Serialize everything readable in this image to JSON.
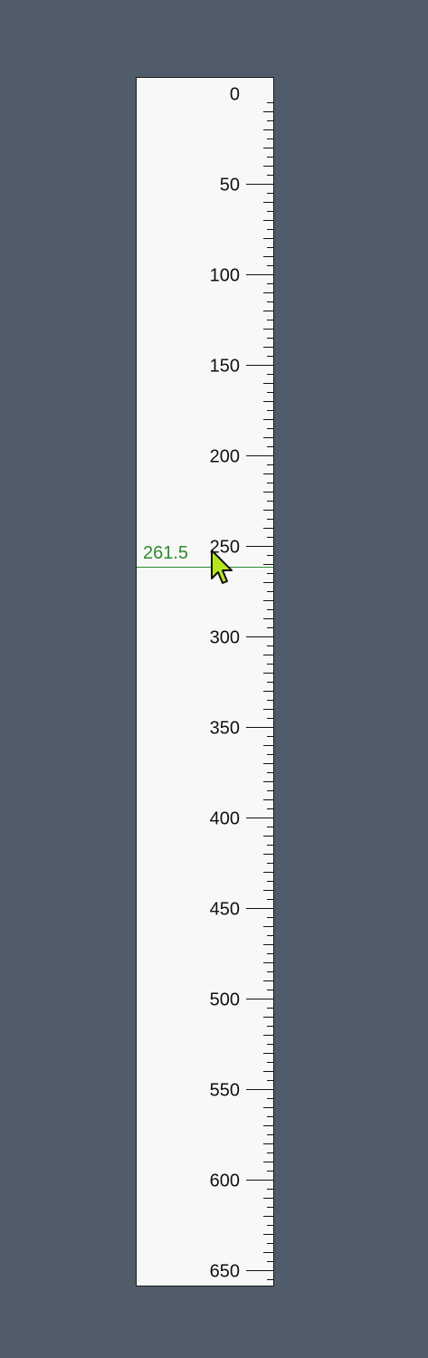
{
  "ruler": {
    "orientation": "vertical",
    "min": 0,
    "max": 665,
    "major_step": 50,
    "minor_step": 5,
    "tick_labels": [
      "0",
      "50",
      "100",
      "150",
      "200",
      "250",
      "300",
      "350",
      "400",
      "450",
      "500",
      "550",
      "600",
      "650"
    ]
  },
  "guide": {
    "value": 261.5,
    "value_label": "261.5",
    "color": "#2e8b2e"
  },
  "cursor": {
    "icon": "arrow-pointer-icon",
    "color": "#b5e61d"
  },
  "colors": {
    "background": "#515c6b",
    "ruler_background": "#f8f8f8"
  }
}
